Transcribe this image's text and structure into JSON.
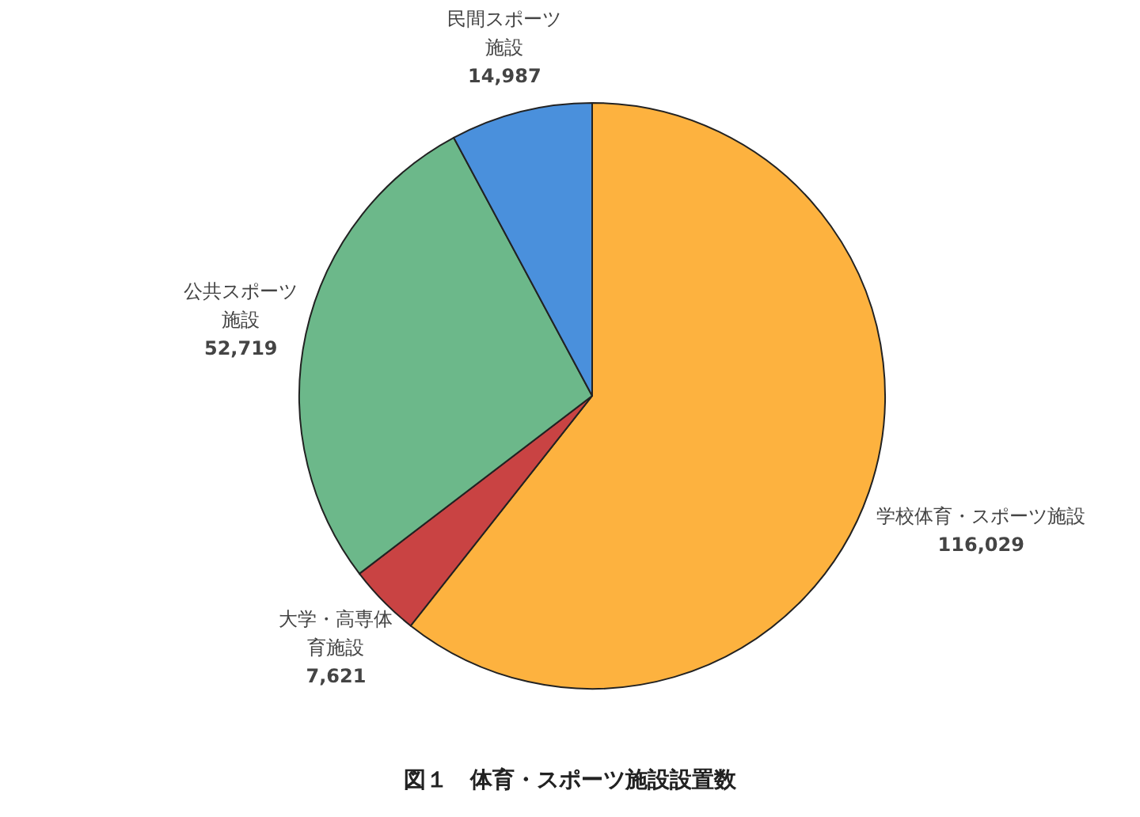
{
  "chart_data": {
    "type": "pie",
    "title": "図１　体育・スポーツ施設設置数",
    "categories": [
      "学校体育・スポーツ施設",
      "大学・高専体育施設",
      "公共スポーツ施設",
      "民間スポーツ施設"
    ],
    "values": [
      116029,
      7621,
      52719,
      14987
    ],
    "value_labels": [
      "116,029",
      "7,621",
      "52,719",
      "14,987"
    ],
    "colors": [
      "#fdb23f",
      "#c94343",
      "#6cb88a",
      "#4a90dc"
    ]
  }
}
